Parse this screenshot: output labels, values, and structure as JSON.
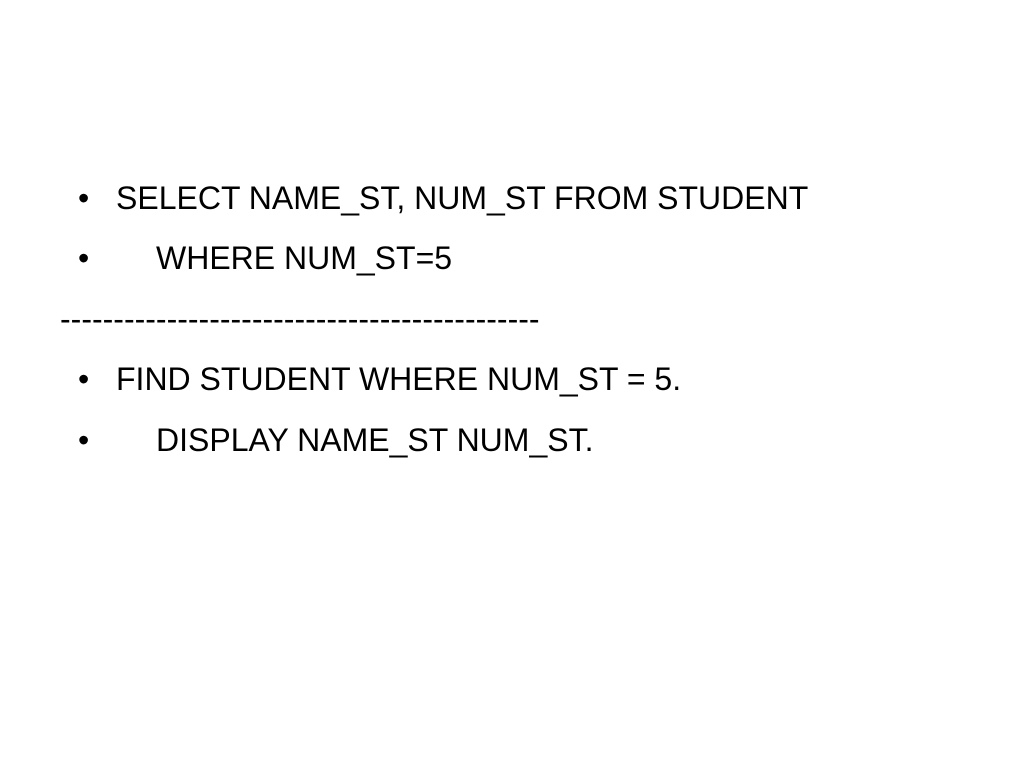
{
  "slide": {
    "items": [
      {
        "text": "SELECT NAME_ST, NUM_ST FROM STUDENT",
        "indent": false
      },
      {
        "text": "WHERE NUM_ST=5",
        "indent": true
      }
    ],
    "divider": "---------------------------------------------",
    "items2": [
      {
        "text": "FIND STUDENT WHERE NUM_ST = 5.",
        "indent": false
      },
      {
        "text": "DISPLAY NAME_ST NUM_ST.",
        "indent": true
      }
    ],
    "text_color": "#000000",
    "background_color": "#ffffff",
    "font_size": 32
  }
}
